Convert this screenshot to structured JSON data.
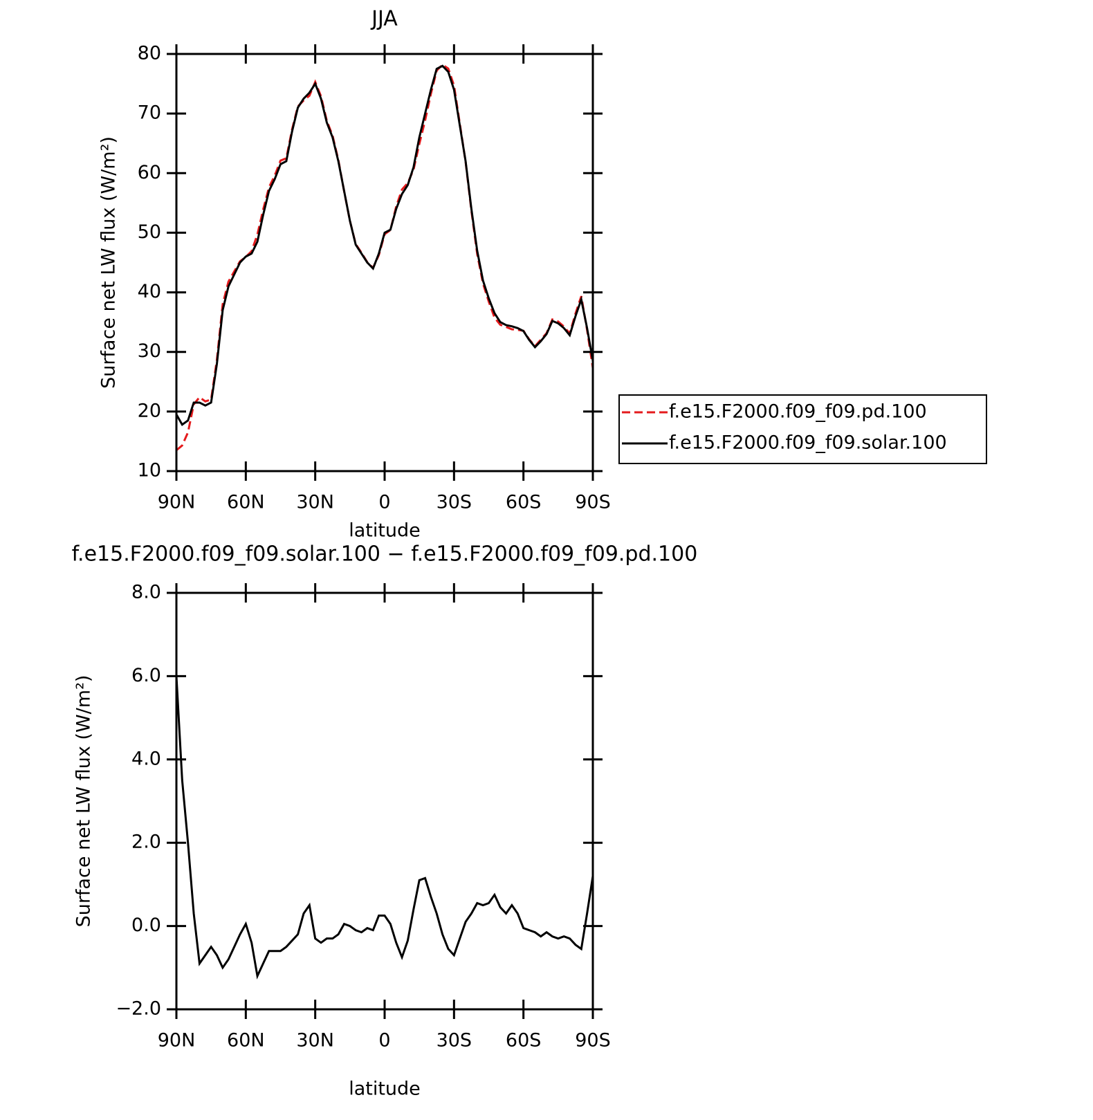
{
  "chart_data": [
    {
      "type": "line",
      "title": "JJA",
      "xlabel": "latitude",
      "ylabel": "Surface net LW flux (W/m²)",
      "x": [
        90,
        87.5,
        85,
        82.5,
        80,
        77.5,
        75,
        72.5,
        70,
        67.5,
        65,
        62.5,
        60,
        57.5,
        55,
        52.5,
        50,
        47.5,
        45,
        42.5,
        40,
        37.5,
        35,
        32.5,
        30,
        27.5,
        25,
        22.5,
        20,
        17.5,
        15,
        12.5,
        10,
        7.5,
        5,
        2.5,
        0,
        -2.5,
        -5,
        -7.5,
        -10,
        -12.5,
        -15,
        -17.5,
        -20,
        -22.5,
        -25,
        -27.5,
        -30,
        -32.5,
        -35,
        -37.5,
        -40,
        -42.5,
        -45,
        -47.5,
        -50,
        -52.5,
        -55,
        -57.5,
        -60,
        -62.5,
        -65,
        -67.5,
        -70,
        -72.5,
        -75,
        -77.5,
        -80,
        -82.5,
        -85,
        -87.5,
        -90
      ],
      "series": [
        {
          "name": "f.e15.F2000.f09_f09.pd.100",
          "color": "#e41a1c",
          "line_style": "dashed",
          "values": [
            13.5,
            14.3,
            16.5,
            21.2,
            22.4,
            21.7,
            22,
            28.7,
            38,
            41.8,
            43.5,
            45.2,
            45.95,
            46.9,
            49.7,
            53.9,
            57.6,
            59.6,
            62.1,
            62.5,
            67.35,
            71.2,
            72.2,
            73,
            75.3,
            72.9,
            68.8,
            66.3,
            62.2,
            56.95,
            52,
            48.1,
            46.65,
            45.05,
            44.1,
            46.25,
            49.75,
            50.45,
            54.4,
            57.25,
            58.35,
            60.6,
            64.9,
            68.85,
            73.3,
            77.2,
            78.2,
            77.55,
            74.7,
            68.3,
            61.9,
            53.7,
            46.45,
            41.5,
            38.45,
            35.75,
            34.55,
            34.2,
            33.8,
            33.7,
            33.55,
            32.1,
            30.95,
            32.05,
            33.15,
            35.45,
            35.1,
            34.25,
            33.1,
            36.45,
            39.35,
            33.7,
            27.3
          ]
        },
        {
          "name": "f.e15.F2000.f09_f09.solar.100",
          "color": "#000000",
          "line_style": "solid",
          "values": [
            19.5,
            17.8,
            18.5,
            21.5,
            21.5,
            21,
            21.5,
            28,
            37,
            41,
            43,
            45,
            46,
            46.5,
            48.5,
            53,
            57,
            59,
            61.5,
            62,
            67,
            71,
            72.5,
            73.5,
            75,
            72.5,
            68.5,
            66,
            62,
            57,
            52,
            48,
            46.5,
            45,
            44,
            46.5,
            50,
            50.5,
            54,
            56.5,
            58,
            61,
            66,
            70,
            74,
            77.5,
            78,
            77,
            74,
            68,
            62,
            54,
            47,
            42,
            39,
            36.5,
            35,
            34.5,
            34.3,
            34,
            33.5,
            32,
            30.8,
            31.8,
            33,
            35.2,
            34.8,
            34,
            32.8,
            36,
            38.8,
            34,
            28.5
          ]
        }
      ],
      "xlim": [
        90,
        -90
      ],
      "xticks": [
        {
          "value": 90,
          "label": "90N"
        },
        {
          "value": 60,
          "label": "60N"
        },
        {
          "value": 30,
          "label": "30N"
        },
        0,
        {
          "value": -30,
          "label": "30S"
        },
        {
          "value": -60,
          "label": "60S"
        },
        {
          "value": -90,
          "label": "90S"
        }
      ],
      "ylim": [
        10,
        80
      ],
      "yticks": [
        10,
        20,
        30,
        40,
        50,
        60,
        70,
        80
      ],
      "legend": "right",
      "grid": false
    },
    {
      "type": "line",
      "title": "f.e15.F2000.f09_f09.solar.100 − f.e15.F2000.f09_f09.pd.100",
      "xlabel": "latitude",
      "ylabel": "Surface net LW flux (W/m²)",
      "x": [
        90,
        87.5,
        85,
        82.5,
        80,
        77.5,
        75,
        72.5,
        70,
        67.5,
        65,
        62.5,
        60,
        57.5,
        55,
        52.5,
        50,
        47.5,
        45,
        42.5,
        40,
        37.5,
        35,
        32.5,
        30,
        27.5,
        25,
        22.5,
        20,
        17.5,
        15,
        12.5,
        10,
        7.5,
        5,
        2.5,
        0,
        -2.5,
        -5,
        -7.5,
        -10,
        -12.5,
        -15,
        -17.5,
        -20,
        -22.5,
        -25,
        -27.5,
        -30,
        -32.5,
        -35,
        -37.5,
        -40,
        -42.5,
        -45,
        -47.5,
        -50,
        -52.5,
        -55,
        -57.5,
        -60,
        -62.5,
        -65,
        -67.5,
        -70,
        -72.5,
        -75,
        -77.5,
        -80,
        -82.5,
        -85,
        -87.5,
        -90
      ],
      "series": [
        {
          "color": "#000000",
          "line_style": "solid",
          "values": [
            6,
            3.5,
            2,
            0.3,
            -0.9,
            -0.7,
            -0.5,
            -0.7,
            -1,
            -0.8,
            -0.5,
            -0.2,
            0.05,
            -0.4,
            -1.2,
            -0.9,
            -0.6,
            -0.6,
            -0.6,
            -0.5,
            -0.35,
            -0.2,
            0.3,
            0.5,
            -0.3,
            -0.4,
            -0.3,
            -0.3,
            -0.2,
            0.05,
            0,
            -0.1,
            -0.15,
            -0.05,
            -0.1,
            0.25,
            0.25,
            0.05,
            -0.4,
            -0.75,
            -0.35,
            0.4,
            1.1,
            1.15,
            0.7,
            0.3,
            -0.2,
            -0.55,
            -0.7,
            -0.3,
            0.1,
            0.3,
            0.55,
            0.5,
            0.55,
            0.75,
            0.45,
            0.3,
            0.5,
            0.3,
            -0.05,
            -0.1,
            -0.15,
            -0.25,
            -0.15,
            -0.25,
            -0.3,
            -0.25,
            -0.3,
            -0.45,
            -0.55,
            0.3,
            1.2
          ]
        }
      ],
      "xlim": [
        90,
        -90
      ],
      "xticks": [
        {
          "value": 90,
          "label": "90N"
        },
        {
          "value": 60,
          "label": "60N"
        },
        {
          "value": 30,
          "label": "30N"
        },
        0,
        {
          "value": -30,
          "label": "30S"
        },
        {
          "value": -60,
          "label": "60S"
        },
        {
          "value": -90,
          "label": "90S"
        }
      ],
      "ylim": [
        -2,
        8
      ],
      "yticks": [
        {
          "value": -2,
          "label": "−2.0"
        },
        {
          "value": 0,
          "label": "0.0"
        },
        {
          "value": 2,
          "label": "2.0"
        },
        {
          "value": 4,
          "label": "4.0"
        },
        {
          "value": 6,
          "label": "6.0"
        },
        {
          "value": 8,
          "label": "8.0"
        }
      ],
      "grid": false
    }
  ]
}
